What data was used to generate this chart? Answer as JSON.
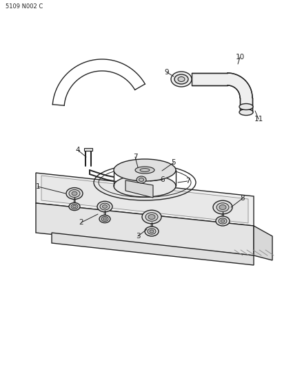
{
  "code_label": "5109 N002 C",
  "bg": "#ffffff",
  "lc": "#222222",
  "figsize": [
    4.1,
    5.33
  ],
  "dpi": 100
}
